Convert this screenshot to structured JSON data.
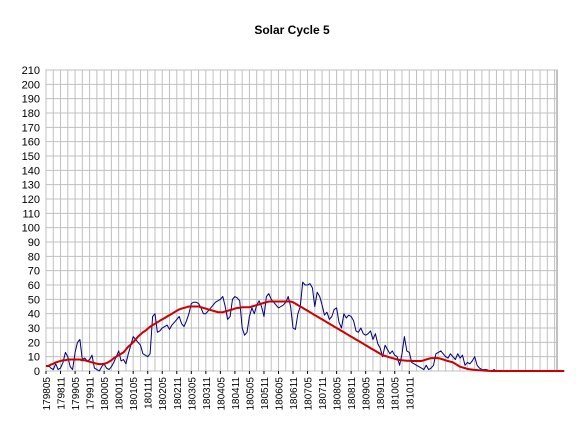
{
  "chart_data": {
    "type": "line",
    "title": "Solar Cycle 5",
    "xlabel": "",
    "ylabel": "",
    "ylim": [
      0,
      210
    ],
    "y_ticks": [
      0,
      10,
      20,
      30,
      40,
      50,
      60,
      70,
      80,
      90,
      100,
      110,
      120,
      130,
      140,
      150,
      160,
      170,
      180,
      190,
      200,
      210
    ],
    "x_tick_labels": [
      "179805",
      "179811",
      "179905",
      "179911",
      "180005",
      "180011",
      "180105",
      "180111",
      "180205",
      "180211",
      "180305",
      "180311",
      "180405",
      "180411",
      "180505",
      "180511",
      "180605",
      "180611",
      "180705",
      "180711",
      "180805",
      "180811",
      "180905",
      "180911",
      "181005",
      "181011"
    ],
    "grid": true,
    "legend": "none",
    "colors": {
      "monthly": "#00007a",
      "smoothed": "#cc0000",
      "grid": "#c0c0c0"
    },
    "series": [
      {
        "id": "monthly",
        "start_month": "1798-05",
        "values": [
          3,
          4,
          2,
          1,
          5,
          1,
          2,
          6,
          13,
          10,
          3,
          1,
          13,
          20,
          22,
          8,
          9,
          7,
          8,
          11,
          2,
          1,
          0,
          3,
          5,
          2,
          1,
          3,
          6,
          10,
          14,
          7,
          8,
          5,
          12,
          18,
          24,
          22,
          20,
          18,
          12,
          11,
          10,
          12,
          38,
          40,
          27,
          28,
          30,
          31,
          32,
          29,
          32,
          34,
          36,
          38,
          33,
          31,
          35,
          40,
          47,
          48,
          48,
          47,
          44,
          40,
          40,
          42,
          44,
          46,
          48,
          49,
          50,
          52,
          45,
          36,
          38,
          50,
          52,
          51,
          49,
          30,
          25,
          27,
          38,
          44,
          40,
          46,
          49,
          45,
          38,
          52,
          54,
          50,
          48,
          46,
          44,
          45,
          46,
          48,
          52,
          45,
          30,
          29,
          40,
          45,
          62,
          60,
          60,
          61,
          58,
          45,
          55,
          52,
          46,
          39,
          41,
          36,
          38,
          43,
          44,
          34,
          30,
          40,
          37,
          39,
          38,
          35,
          28,
          27,
          30,
          26,
          25,
          26,
          28,
          22,
          26,
          19,
          16,
          10,
          18,
          15,
          12,
          14,
          11,
          10,
          4,
          12,
          24,
          14,
          13,
          6,
          5,
          4,
          3,
          2,
          1,
          4,
          1,
          2,
          4,
          12,
          13,
          14,
          12,
          10,
          9,
          12,
          10,
          8,
          12,
          9,
          11,
          4,
          6,
          5,
          7,
          10,
          4,
          2,
          1,
          1,
          1,
          0,
          0,
          1,
          0,
          0,
          0,
          0,
          0,
          0,
          0,
          0,
          0,
          0,
          0,
          0,
          0,
          0,
          0,
          0,
          0,
          0,
          0,
          0,
          0,
          0,
          0,
          0,
          0,
          0
        ]
      },
      {
        "id": "smoothed",
        "start_month": "1798-05",
        "values": [
          3.5,
          3.5,
          4.5,
          5,
          6,
          6.5,
          7,
          7.5,
          7.5,
          8,
          8,
          8,
          8,
          8,
          8,
          7.5,
          7.5,
          7,
          6.5,
          6,
          5.5,
          5,
          4.8,
          4.8,
          5,
          5.5,
          6.5,
          7.5,
          9,
          10,
          11,
          12,
          13,
          15,
          17,
          18.5,
          20,
          22,
          24,
          25.5,
          27,
          28,
          29.5,
          31,
          32,
          33,
          34,
          35,
          36,
          37,
          38,
          39,
          40,
          41,
          42,
          43,
          43.5,
          44,
          44.5,
          45,
          45,
          45,
          45,
          45,
          44.5,
          44,
          43.5,
          43,
          42.5,
          42,
          41.5,
          41,
          41,
          41,
          41.5,
          42,
          42.5,
          43,
          43.5,
          44,
          44,
          44.5,
          44.5,
          44.5,
          44.5,
          45,
          45.5,
          46,
          46.5,
          47,
          47.5,
          48,
          48.5,
          48.5,
          48.5,
          48.5,
          48.5,
          48.5,
          48.5,
          48.5,
          48.5,
          48.5,
          48,
          47,
          46,
          45,
          44,
          43,
          42,
          41,
          40,
          39,
          38,
          37,
          36,
          35,
          34,
          33,
          32,
          31,
          30,
          29,
          28,
          27,
          26,
          25,
          24,
          23,
          22,
          21,
          20,
          19,
          18,
          17,
          16,
          15,
          14,
          13,
          12,
          11,
          10.5,
          10,
          9.5,
          9,
          8.5,
          8,
          7.7,
          7.5,
          7.3,
          7.2,
          7.1,
          7,
          7,
          7,
          7,
          7,
          7.5,
          8,
          8.5,
          9,
          9,
          9,
          9,
          8.5,
          8,
          7.5,
          7,
          6.5,
          6,
          5,
          4,
          3,
          2.5,
          2,
          1.5,
          1.2,
          1,
          0.8,
          0.6,
          0.5,
          0.4,
          0.3,
          0.2,
          0.1,
          0,
          0,
          0,
          0,
          0,
          0,
          0,
          0,
          0,
          0,
          0,
          0,
          0,
          0,
          0,
          0,
          0,
          0,
          0,
          0,
          0,
          0,
          0,
          0,
          0,
          0,
          0,
          0,
          0,
          0,
          0
        ]
      }
    ]
  }
}
